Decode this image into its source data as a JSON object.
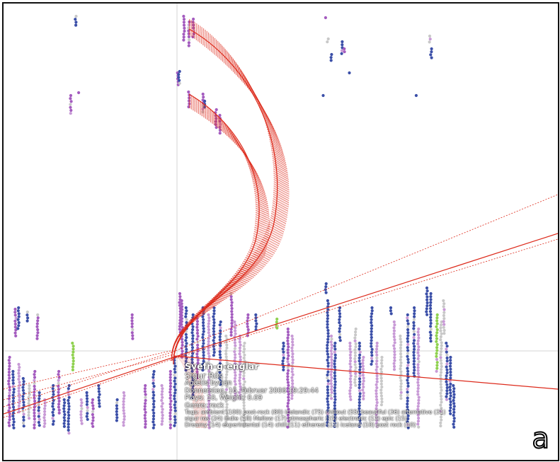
{
  "tooltip": {
    "title": "Svefn-g-englar",
    "artist": "Sigur Rós",
    "album": "Ágætis byrjun",
    "date": "Donnerstag, 16. Februar 2006 19:29:44",
    "plays": "Plays: 10, Weight: 0.09",
    "genre": "Genre: rock",
    "tags_line1": "Tags: ambient (100) post-rock (80) icelandic (75) chillout (55) beautiful (36) alternative (31)",
    "tags_line2": "sigur ros (24) indie (18) Mellow (17) atmospheric (15) electronic (13) epic (15)",
    "tags_line3": "Dreamy (14) experimental (14) chill (11) ethereal (11) iceland (10) post rock (10)"
  },
  "panel_label": "a",
  "colors": {
    "blue": "#3b4fa8",
    "purple": "#a45cbf",
    "light_purple": "#c89ad6",
    "grey": "#c8c8c8",
    "green": "#8fd14f",
    "yellow": "#e8d24a",
    "red": "#dd2a1b",
    "crosshair": "#d0d0d0"
  }
}
